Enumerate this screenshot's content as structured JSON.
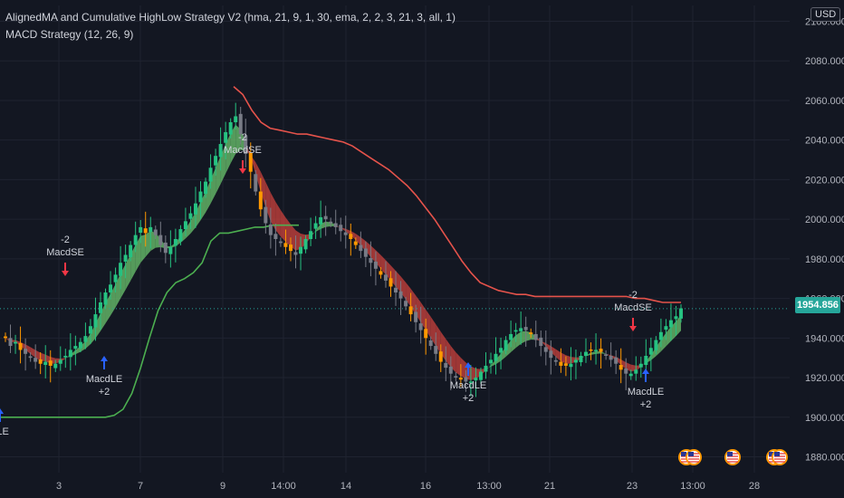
{
  "header": {
    "strategy_legend": "AlignedMA and Cumulative HighLow Strategy V2 (hma, 21, 9, 1, 30, ema, 2, 2, 3, 21, 3, all, 1)",
    "macd_legend": "MACD Strategy (12, 26, 9)",
    "currency_button": "USD",
    "last_price": "1954.856"
  },
  "colors": {
    "background": "#131722",
    "grid": "#1f2330",
    "bull_candle": "#26c281",
    "bear_candle": "#787b86",
    "orange_candle": "#ff9800",
    "red_line": "#e5534b",
    "green_line": "#4caf50",
    "bull_band": "#66bb6a",
    "bear_band": "#c2403c",
    "price_tag": "#26a69a",
    "sell_arrow": "#f23645",
    "buy_arrow": "#2962ff"
  },
  "chart_data": {
    "type": "candlestick",
    "y_axis": {
      "ticks": [
        "2100.000",
        "2080.000",
        "2060.000",
        "2040.000",
        "2020.000",
        "2000.000",
        "1980.000",
        "1960.000",
        "1940.000",
        "1920.000",
        "1900.000",
        "1880.000"
      ],
      "ylim": [
        1872,
        2108
      ]
    },
    "x_axis": {
      "ticks": [
        "3",
        "7",
        "9",
        "14:00",
        "14",
        "16",
        "13:00",
        "21",
        "23",
        "13:00",
        "28"
      ]
    },
    "last_price": 1954.856,
    "close": [
      1940,
      1936,
      1938,
      1934,
      1932,
      1930,
      1928,
      1927,
      1928,
      1926,
      1927,
      1929,
      1931,
      1934,
      1936,
      1938,
      1941,
      1946,
      1952,
      1958,
      1963,
      1967,
      1972,
      1978,
      1982,
      1987,
      1992,
      1996,
      1993,
      1996,
      1992,
      1987,
      1983,
      1986,
      1990,
      1995,
      1999,
      2003,
      2008,
      2014,
      2019,
      2026,
      2032,
      2038,
      2044,
      2049,
      2052,
      2043,
      2033,
      2024,
      2014,
      2005,
      1998,
      1992,
      1990,
      1988,
      1986,
      1984,
      1982,
      1986,
      1990,
      1994,
      1998,
      2001,
      2000,
      1998,
      1996,
      1994,
      1992,
      1990,
      1987,
      1984,
      1981,
      1978,
      1975,
      1972,
      1969,
      1966,
      1963,
      1960,
      1956,
      1952,
      1948,
      1944,
      1940,
      1936,
      1932,
      1928,
      1925,
      1922,
      1920,
      1919,
      1918,
      1918,
      1920,
      1923,
      1926,
      1929,
      1932,
      1935,
      1939,
      1942,
      1944,
      1945,
      1944,
      1942,
      1939,
      1936,
      1933,
      1930,
      1928,
      1926,
      1926,
      1927,
      1929,
      1931,
      1933,
      1934,
      1934,
      1933,
      1931,
      1929,
      1927,
      1924,
      1922,
      1922,
      1924,
      1927,
      1931,
      1935,
      1939,
      1943,
      1946,
      1949,
      1951,
      1955
    ],
    "series": [
      {
        "name": "",
        "values": [
          2067,
          2063,
          2055,
          2049,
          2046,
          2045,
          2044,
          2043,
          2043,
          2042,
          2041,
          2040,
          2039,
          2037,
          2034,
          2031,
          2028,
          2025,
          2021,
          2017,
          2012,
          2006,
          2000,
          1993,
          1986,
          1979,
          1973,
          1968,
          1966,
          1964,
          1963,
          1962,
          1962,
          1961,
          1961,
          1961,
          1961,
          1961,
          1961,
          1961,
          1961,
          1961,
          1961,
          1961,
          1960,
          1960,
          1959,
          1958,
          1958,
          1958
        ]
      },
      {
        "name": "",
        "values": [
          1900,
          1900,
          1900,
          1900,
          1900,
          1900,
          1900,
          1900,
          1900,
          1900,
          1900,
          1900,
          1900,
          1901,
          1904,
          1912,
          1925,
          1940,
          1954,
          1963,
          1968,
          1970,
          1973,
          1978,
          1989,
          1993,
          1993,
          1994,
          1995,
          1996,
          1996,
          1997,
          1997,
          1997,
          1997
        ]
      }
    ],
    "annotations": [
      {
        "label": "-2",
        "sublabel": "MacdSE",
        "type": "sell"
      },
      {
        "label": "-2",
        "sublabel": "MacdSE",
        "type": "sell"
      },
      {
        "label": "-2",
        "sublabel": "MacdSE",
        "type": "sell"
      },
      {
        "label": "MacdLE",
        "sublabel": "+2",
        "type": "buy"
      },
      {
        "label": "MacdLE",
        "sublabel": "+2",
        "type": "buy"
      },
      {
        "label": "MacdLE",
        "sublabel": "+2",
        "type": "buy"
      },
      {
        "label": "dLE",
        "sublabel": "",
        "type": "buy"
      }
    ],
    "events": [
      "us-flag-icon",
      "us-flag-icon",
      "us-flag-icon",
      "us-flag-icon",
      "us-flag-icon"
    ]
  }
}
